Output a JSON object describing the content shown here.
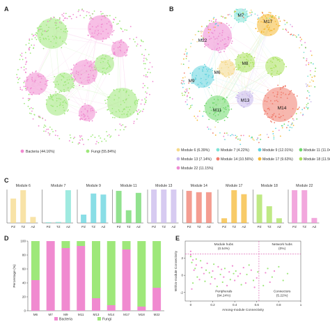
{
  "panels": {
    "A": "A",
    "B": "B",
    "C": "C",
    "D": "D",
    "E": "E"
  },
  "colors": {
    "bacteria": "#f08ad0",
    "fungi": "#9ee87a",
    "M6": "#f5d98a",
    "M7": "#7fe3d6",
    "M9": "#63d3de",
    "M11": "#6ed86a",
    "M13": "#c9b9ec",
    "M14": "#f07c6c",
    "M17": "#f6b935",
    "M18": "#a9e25c",
    "M22": "#ee8ad2"
  },
  "panel_a": {
    "legend": [
      {
        "label": "Bacteria (44.16%)",
        "color": "#f08ad0"
      },
      {
        "label": "Fungi (55.84%)",
        "color": "#9ee87a"
      }
    ]
  },
  "panel_b": {
    "module_labels": [
      "M7",
      "M17",
      "M22",
      "M6",
      "M8",
      "M9",
      "M13",
      "M11",
      "M14"
    ],
    "legend": [
      {
        "label": "Module 6 (6.39%)",
        "color": "#f5d98a"
      },
      {
        "label": "Module 7 (4.22%)",
        "color": "#7fe3d6"
      },
      {
        "label": "Module 9 (12.01%)",
        "color": "#63d3de"
      },
      {
        "label": "Module 11 (11.04%)",
        "color": "#6ed86a"
      },
      {
        "label": "Module 13 (7.14%)",
        "color": "#c9b9ec"
      },
      {
        "label": "Module 14 (10.56%)",
        "color": "#f07c6c"
      },
      {
        "label": "Module 17 (9.63%)",
        "color": "#f6b935"
      },
      {
        "label": "Module 18 (11.56%)",
        "color": "#a9e25c"
      },
      {
        "label": "Module 22 (11.15%)",
        "color": "#ee8ad2"
      }
    ]
  },
  "chart_data": [
    {
      "type": "bar",
      "panel": "C",
      "categories": [
        "PZ",
        "TZ",
        "AZ"
      ],
      "ylim": [
        0,
        100
      ],
      "series": [
        {
          "name": "Module 6",
          "values": [
            73,
            98,
            18
          ]
        },
        {
          "name": "Module 7",
          "values": [
            2,
            3,
            98
          ]
        },
        {
          "name": "Module 9",
          "values": [
            25,
            88,
            85
          ]
        },
        {
          "name": "Module 11",
          "values": [
            96,
            38,
            90
          ]
        },
        {
          "name": "Module 13",
          "values": [
            100,
            100,
            100
          ]
        },
        {
          "name": "Module 14",
          "values": [
            96,
            92,
            92
          ]
        },
        {
          "name": "Module 17",
          "values": [
            14,
            98,
            86
          ]
        },
        {
          "name": "Module 18",
          "values": [
            85,
            50,
            14
          ]
        },
        {
          "name": "Module 22",
          "values": [
            98,
            98,
            15
          ]
        }
      ]
    },
    {
      "type": "bar",
      "panel": "D",
      "stacked": true,
      "categories": [
        "M6",
        "M7",
        "M9",
        "M11",
        "M13",
        "M14",
        "M17",
        "M18",
        "M22"
      ],
      "ylabel": "Percentage (%)",
      "ylim": [
        0,
        100
      ],
      "yticks": [
        0,
        20,
        40,
        60,
        80,
        100
      ],
      "legend": "bottom",
      "series": [
        {
          "name": "Bacteria",
          "values": [
            44,
            100,
            90,
            93,
            18,
            8,
            88,
            6,
            33
          ]
        },
        {
          "name": "Fungi",
          "values": [
            56,
            0,
            10,
            7,
            82,
            92,
            12,
            94,
            67
          ]
        }
      ]
    },
    {
      "type": "scatter",
      "panel": "E",
      "xlabel": "Among-module Connectivity",
      "ylabel": "Within-module Connectivity",
      "xlim": [
        -0.05,
        1.0
      ],
      "ylim": [
        -3,
        4
      ],
      "xticks": [
        "0",
        "0.2",
        "0.4",
        "0.6",
        "0.8",
        "1"
      ],
      "yticks": [
        "-2",
        "0",
        "2"
      ],
      "thresholds": {
        "x": 0.62,
        "y": 2.5
      },
      "annotations": [
        {
          "text": "Module hubs",
          "sub": "(0.54%)"
        },
        {
          "text": "Network hubs",
          "sub": "(0%)"
        },
        {
          "text": "Peripherals",
          "sub": "(94.24%)"
        },
        {
          "text": "Connectors",
          "sub": "(5.22%)"
        }
      ],
      "series": [
        {
          "name": "Bacteria",
          "points": [
            [
              0.0,
              2.8
            ],
            [
              0.0,
              2.4
            ],
            [
              0.02,
              1.8
            ],
            [
              0.05,
              1.2
            ],
            [
              0.1,
              0.9
            ],
            [
              0.15,
              1.4
            ],
            [
              0.2,
              0.5
            ],
            [
              0.25,
              1.0
            ],
            [
              0.3,
              -0.2
            ],
            [
              0.35,
              0.4
            ],
            [
              0.4,
              -0.6
            ],
            [
              0.45,
              0.2
            ],
            [
              0.5,
              -0.9
            ],
            [
              0.55,
              0.6
            ],
            [
              0.6,
              -0.3
            ],
            [
              0.08,
              -0.5
            ],
            [
              0.12,
              0.2
            ],
            [
              0.18,
              -1.0
            ],
            [
              0.22,
              -0.4
            ],
            [
              0.28,
              0.7
            ],
            [
              0.33,
              -1.2
            ],
            [
              0.38,
              1.1
            ],
            [
              0.43,
              -0.1
            ],
            [
              0.48,
              0.9
            ],
            [
              0.58,
              -1.4
            ],
            [
              0.68,
              0.3
            ],
            [
              0.72,
              -0.8
            ],
            [
              0.76,
              0.5
            ],
            [
              0.01,
              -1.6
            ],
            [
              0.03,
              0.6
            ]
          ]
        },
        {
          "name": "Fungi",
          "points": [
            [
              0.0,
              2.2
            ],
            [
              0.01,
              1.5
            ],
            [
              0.04,
              0.8
            ],
            [
              0.06,
              -0.2
            ],
            [
              0.09,
              1.7
            ],
            [
              0.13,
              -0.7
            ],
            [
              0.17,
              0.3
            ],
            [
              0.21,
              1.3
            ],
            [
              0.24,
              -1.3
            ],
            [
              0.27,
              0.1
            ],
            [
              0.31,
              0.8
            ],
            [
              0.36,
              -0.5
            ],
            [
              0.41,
              0.5
            ],
            [
              0.46,
              -1.1
            ],
            [
              0.51,
              0.1
            ],
            [
              0.53,
              1.2
            ],
            [
              0.57,
              -0.6
            ],
            [
              0.61,
              0.4
            ],
            [
              0.66,
              -1.2
            ],
            [
              0.7,
              0.8
            ],
            [
              0.74,
              -0.2
            ],
            [
              0.8,
              1.0
            ],
            [
              0.84,
              -0.6
            ],
            [
              0.88,
              0.2
            ],
            [
              0.02,
              -0.9
            ],
            [
              0.05,
              1.9
            ],
            [
              0.14,
              0.6
            ],
            [
              0.19,
              -0.2
            ],
            [
              0.29,
              -0.8
            ],
            [
              0.39,
              0.2
            ]
          ]
        }
      ]
    }
  ]
}
